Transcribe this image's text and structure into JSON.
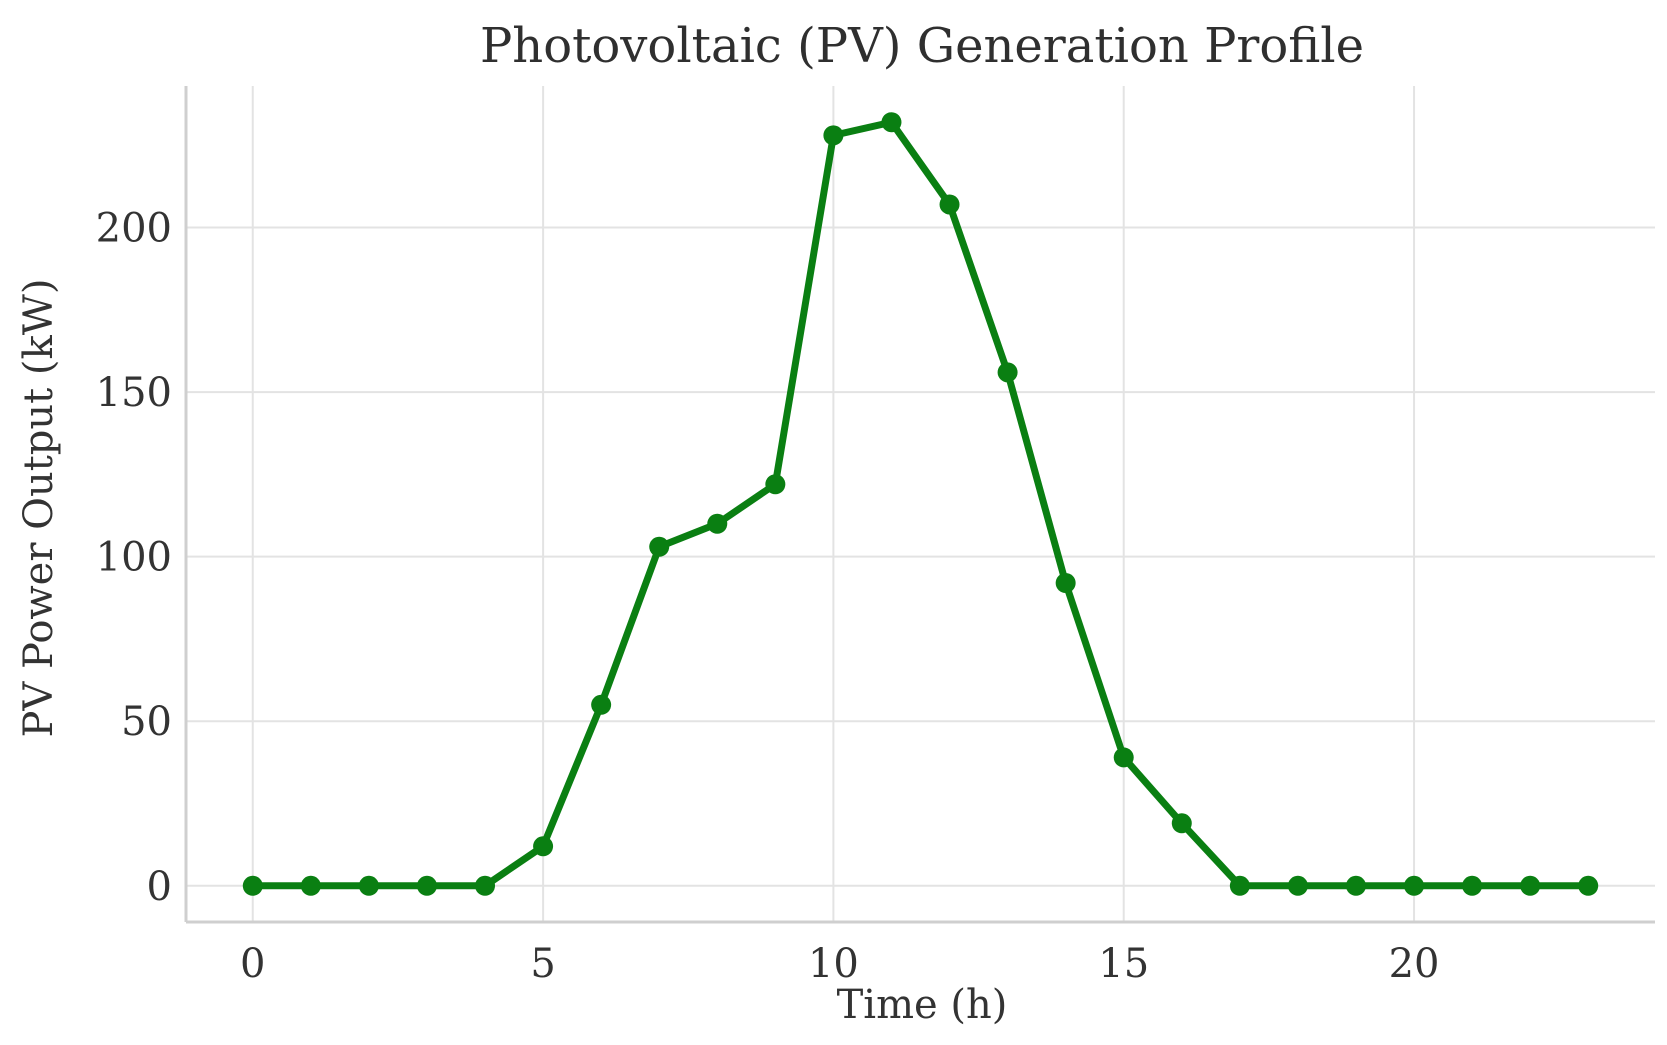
{
  "chart_data": {
    "type": "line",
    "title": "Photovoltaic (PV) Generation Profile",
    "xlabel": "Time (h)",
    "ylabel": "PV Power Output (kW)",
    "xlim": [
      -1.15,
      24.15
    ],
    "ylim": [
      -11,
      243
    ],
    "xticks": [
      0,
      5,
      10,
      15,
      20
    ],
    "yticks": [
      0,
      50,
      100,
      150,
      200
    ],
    "grid": true,
    "legend": "none",
    "series": [
      {
        "name": "PV Power Output",
        "color": "#0a7f12",
        "marker": "circle",
        "x": [
          0,
          1,
          2,
          3,
          4,
          5,
          6,
          7,
          8,
          9,
          10,
          11,
          12,
          13,
          14,
          15,
          16,
          17,
          18,
          19,
          20,
          21,
          22,
          23
        ],
        "y": [
          0,
          0,
          0,
          0,
          0,
          12,
          55,
          103,
          110,
          122,
          228,
          232,
          207,
          156,
          92,
          39,
          19,
          0,
          0,
          0,
          0,
          0,
          0,
          0
        ]
      }
    ]
  }
}
